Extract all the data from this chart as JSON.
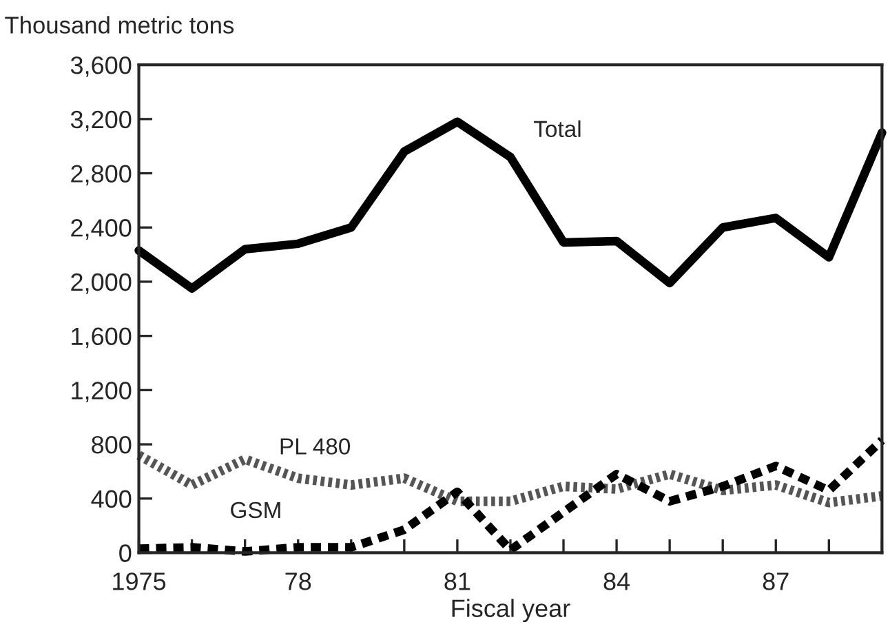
{
  "chart_data": {
    "type": "line",
    "ylabel": "Thousand metric tons",
    "xlabel": "Fiscal year",
    "x": [
      1975,
      1976,
      1977,
      1978,
      1979,
      1980,
      1981,
      1982,
      1983,
      1984,
      1985,
      1986,
      1987,
      1988,
      1989
    ],
    "series": [
      {
        "name": "Total",
        "color": "#000000",
        "line_style": "solid",
        "values": [
          2230,
          1950,
          2240,
          2280,
          2400,
          2960,
          3180,
          2920,
          2290,
          2300,
          1990,
          2400,
          2470,
          2180,
          3100
        ]
      },
      {
        "name": "PL 480",
        "color": "#555555",
        "line_style": "dotted",
        "values": [
          720,
          500,
          690,
          550,
          500,
          550,
          380,
          380,
          490,
          470,
          580,
          460,
          500,
          370,
          420
        ]
      },
      {
        "name": "GSM",
        "color": "#000000",
        "line_style": "dashed",
        "values": [
          30,
          40,
          10,
          40,
          40,
          170,
          450,
          20,
          300,
          580,
          380,
          490,
          640,
          460,
          830
        ]
      }
    ],
    "xlim": [
      1975,
      1989
    ],
    "xticks": [
      {
        "value": 1975,
        "label": "1975"
      },
      {
        "value": 1976,
        "label": null
      },
      {
        "value": 1977,
        "label": null
      },
      {
        "value": 1978,
        "label": "78"
      },
      {
        "value": 1979,
        "label": null
      },
      {
        "value": 1980,
        "label": null
      },
      {
        "value": 1981,
        "label": "81"
      },
      {
        "value": 1982,
        "label": null
      },
      {
        "value": 1983,
        "label": null
      },
      {
        "value": 1984,
        "label": "84"
      },
      {
        "value": 1985,
        "label": null
      },
      {
        "value": 1986,
        "label": null
      },
      {
        "value": 1987,
        "label": "87"
      },
      {
        "value": 1988,
        "label": null
      },
      {
        "value": 1989,
        "label": null
      }
    ],
    "ylim": [
      0,
      3600
    ],
    "yticks": [
      {
        "value": 0,
        "label": "0"
      },
      {
        "value": 400,
        "label": "400"
      },
      {
        "value": 800,
        "label": "800"
      },
      {
        "value": 1200,
        "label": "1,200"
      },
      {
        "value": 1600,
        "label": "1,600"
      },
      {
        "value": 2000,
        "label": "2,000"
      },
      {
        "value": 2400,
        "label": "2,400"
      },
      {
        "value": 2800,
        "label": "2,800"
      },
      {
        "value": 3200,
        "label": "3,200"
      },
      {
        "value": 3600,
        "label": "3,600"
      }
    ],
    "grid": false,
    "legend": false
  }
}
